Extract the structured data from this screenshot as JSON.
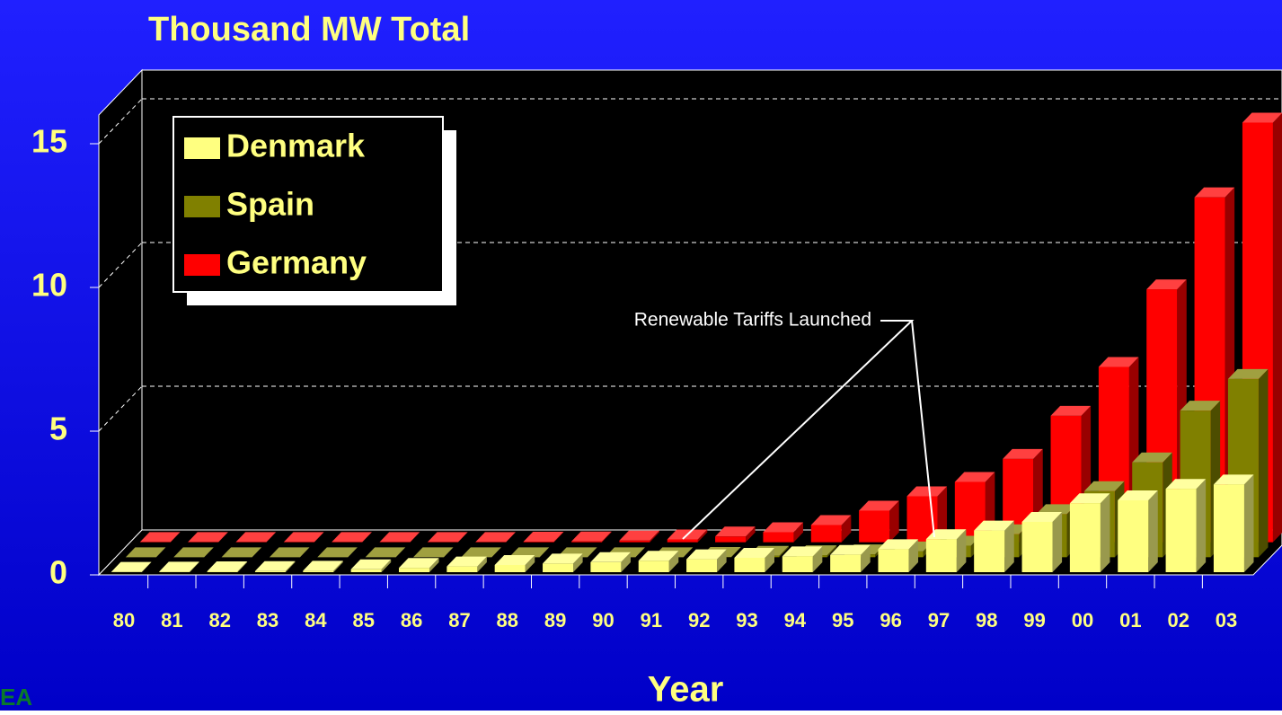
{
  "chart_data": {
    "type": "bar3d",
    "title": "Thousand MW Total",
    "x_label": "Year",
    "annotation": "Renewable Tariffs Launched",
    "logo_text": "EA",
    "categories": [
      "80",
      "81",
      "82",
      "83",
      "84",
      "85",
      "86",
      "87",
      "88",
      "89",
      "90",
      "91",
      "92",
      "93",
      "94",
      "95",
      "96",
      "97",
      "98",
      "99",
      "00",
      "01",
      "02",
      "03"
    ],
    "series": [
      {
        "name": "Denmark",
        "color": "#ffff80",
        "values": [
          0.01,
          0.02,
          0.03,
          0.04,
          0.05,
          0.1,
          0.15,
          0.2,
          0.25,
          0.3,
          0.35,
          0.4,
          0.45,
          0.5,
          0.55,
          0.6,
          0.8,
          1.15,
          1.45,
          1.75,
          2.4,
          2.5,
          2.9,
          3.05
        ]
      },
      {
        "name": "Spain",
        "color": "#808000",
        "values": [
          0,
          0,
          0,
          0,
          0,
          0,
          0,
          0,
          0,
          0,
          0,
          0,
          0.01,
          0.05,
          0.07,
          0.1,
          0.2,
          0.4,
          0.8,
          1.5,
          2.3,
          3.3,
          5.1,
          6.2
        ]
      },
      {
        "name": "Germany",
        "color": "#ff0000",
        "values": [
          0.01,
          0.01,
          0.01,
          0.01,
          0.01,
          0.01,
          0.01,
          0.01,
          0.02,
          0.03,
          0.06,
          0.1,
          0.2,
          0.35,
          0.6,
          1.1,
          1.6,
          2.1,
          2.9,
          4.4,
          6.1,
          8.8,
          12.0,
          14.6
        ]
      }
    ],
    "ylim": [
      0,
      16
    ],
    "yticks": [
      0,
      5,
      10,
      15
    ],
    "grid": true
  }
}
